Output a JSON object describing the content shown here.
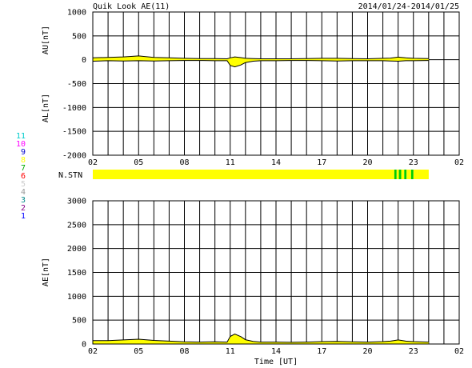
{
  "header": {
    "title": "Quik Look AE(11)",
    "date_range": "2014/01/24-2014/01/25"
  },
  "station_legend": {
    "numbers": [
      "11",
      "10",
      "9",
      "8",
      "7",
      "6",
      "5",
      "4",
      "3",
      "2",
      "1"
    ],
    "colors": [
      "#00cccc",
      "#ff00ff",
      "#0000cc",
      "#ffff00",
      "#00aa00",
      "#ff0000",
      "#cccccc",
      "#999999",
      "#008888",
      "#880088",
      "#0000ff"
    ]
  },
  "colors": {
    "envelope": "#ffff00",
    "trace": "#000000",
    "station_dense": "#00cc00",
    "grid": "#000000"
  },
  "chart_data": [
    {
      "type": "area",
      "name": "AU/AL",
      "ylabel_upper": "AU[nT]",
      "ylabel_lower": "AL[nT]",
      "ylim": [
        -2000,
        1000
      ],
      "yticks": [
        1000,
        500,
        0,
        -500,
        -1000,
        -1500,
        -2000
      ],
      "ytick_labels": [
        "1000",
        "500",
        "0",
        "-500",
        "-1000",
        "-1500",
        "-2000"
      ],
      "xlim": [
        2,
        26
      ],
      "xtick_labels": [
        "02",
        "05",
        "08",
        "11",
        "14",
        "17",
        "20",
        "23",
        "02"
      ],
      "x": [
        2,
        3,
        4,
        5,
        6,
        7,
        8,
        9,
        10,
        10.8,
        11,
        11.3,
        11.7,
        12,
        12.5,
        13,
        14,
        15,
        16,
        17,
        18,
        19,
        20,
        21,
        21.5,
        22,
        22.5,
        23,
        24
      ],
      "au": [
        40,
        50,
        60,
        80,
        50,
        40,
        30,
        25,
        25,
        20,
        40,
        60,
        45,
        30,
        25,
        20,
        20,
        20,
        25,
        30,
        30,
        25,
        20,
        30,
        35,
        55,
        40,
        30,
        25
      ],
      "al": [
        -30,
        -20,
        -25,
        -20,
        -25,
        -20,
        -15,
        -15,
        -20,
        -20,
        -120,
        -150,
        -110,
        -60,
        -30,
        -20,
        -20,
        -15,
        -15,
        -20,
        -25,
        -20,
        -20,
        -20,
        -25,
        -30,
        -20,
        -20,
        -15
      ]
    },
    {
      "type": "bar",
      "name": "N.STN",
      "label": "N.STN",
      "xlim": [
        2,
        26
      ],
      "bands": [
        {
          "start": 2,
          "end": 21.75,
          "level": "normal"
        },
        {
          "start": 21.75,
          "end": 21.9,
          "level": "dense"
        },
        {
          "start": 21.9,
          "end": 22.05,
          "level": "normal"
        },
        {
          "start": 22.05,
          "end": 22.2,
          "level": "dense"
        },
        {
          "start": 22.2,
          "end": 22.4,
          "level": "normal"
        },
        {
          "start": 22.4,
          "end": 22.55,
          "level": "dense"
        },
        {
          "start": 22.55,
          "end": 22.85,
          "level": "normal"
        },
        {
          "start": 22.85,
          "end": 23.0,
          "level": "dense"
        },
        {
          "start": 23.0,
          "end": 24,
          "level": "normal"
        }
      ]
    },
    {
      "type": "area",
      "name": "AE",
      "ylabel": "AE[nT]",
      "xlabel": "Time [UT]",
      "ylim": [
        0,
        3000
      ],
      "yticks": [
        3000,
        2500,
        2000,
        1500,
        1000,
        500,
        0
      ],
      "ytick_labels": [
        "3000",
        "2500",
        "2000",
        "1500",
        "1000",
        "500",
        "0"
      ],
      "xlim": [
        2,
        26
      ],
      "xtick_labels": [
        "02",
        "05",
        "08",
        "11",
        "14",
        "17",
        "20",
        "23",
        "02"
      ],
      "x": [
        2,
        3,
        4,
        5,
        6,
        7,
        8,
        9,
        10,
        10.8,
        11,
        11.3,
        11.7,
        12,
        12.5,
        13,
        14,
        15,
        16,
        17,
        18,
        19,
        20,
        21,
        21.5,
        22,
        22.5,
        23,
        24
      ],
      "ae": [
        70,
        70,
        85,
        100,
        75,
        60,
        45,
        40,
        45,
        40,
        160,
        210,
        155,
        90,
        55,
        40,
        40,
        35,
        40,
        50,
        55,
        45,
        40,
        50,
        60,
        85,
        60,
        50,
        40
      ]
    }
  ]
}
